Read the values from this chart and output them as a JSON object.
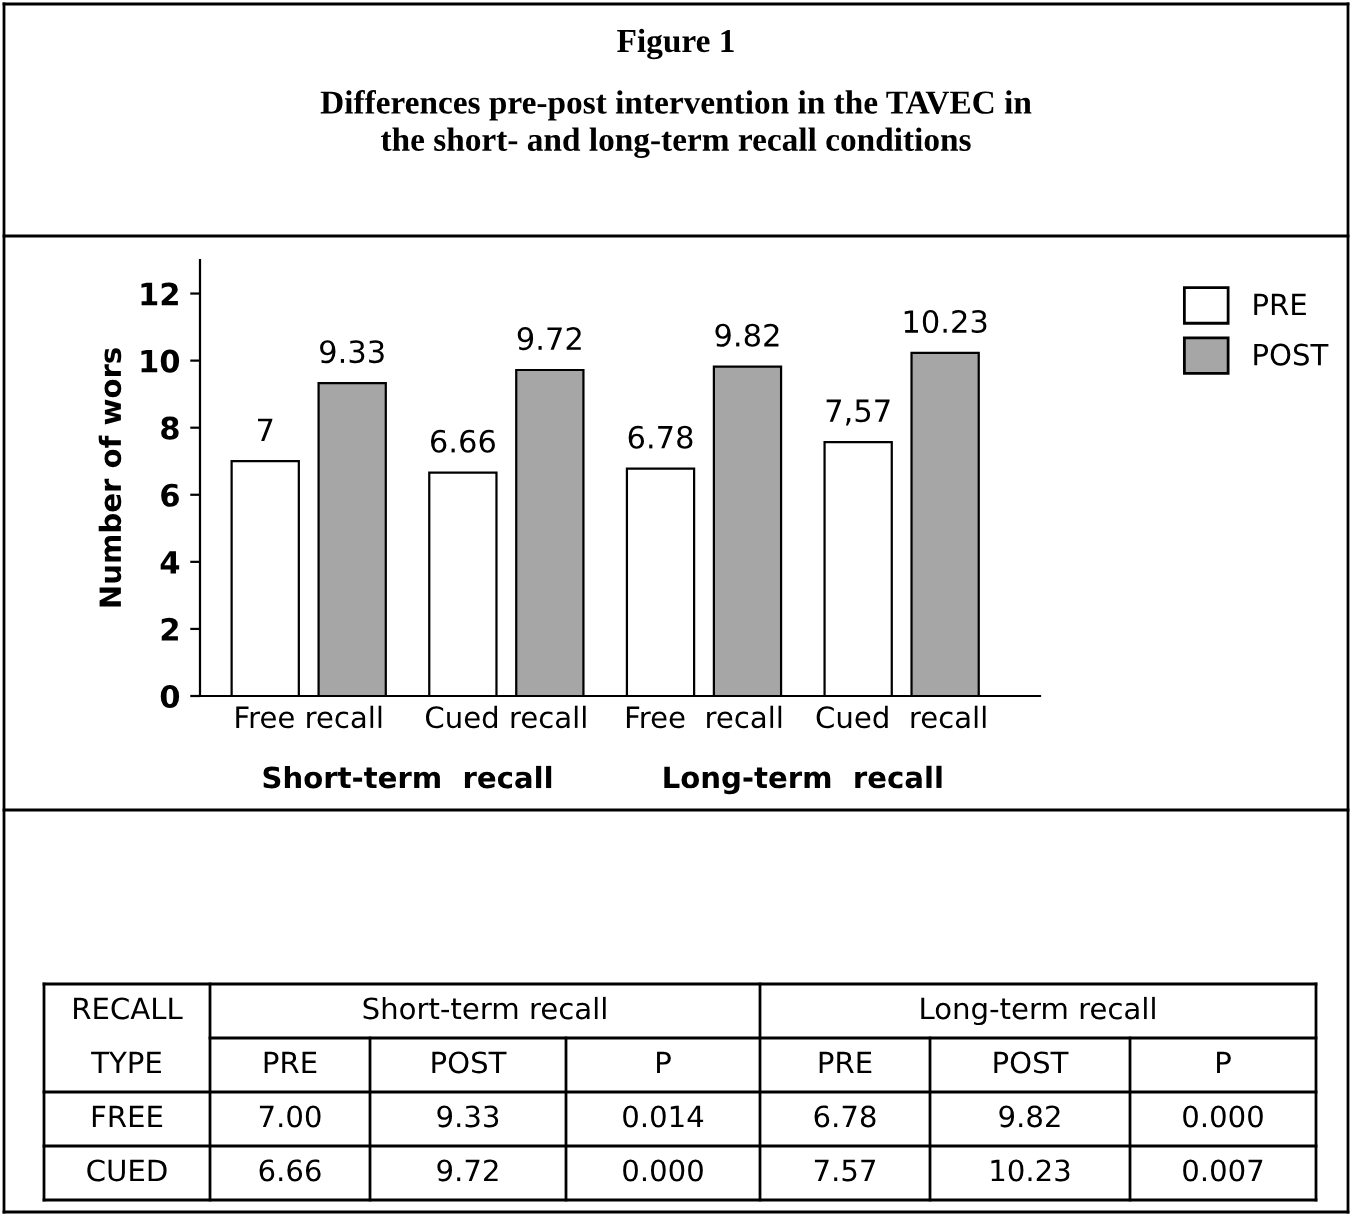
{
  "chart_data": {
    "type": "bar",
    "title": "Figure 1",
    "subtitle": "Differences pre-post intervention in the TAVEC in\nthe short- and long-term recall conditions",
    "ylabel": "Number of wors",
    "categories": [
      "Free recall",
      "Cued recall",
      "Free  recall",
      "Cued  recall"
    ],
    "series": [
      {
        "name": "PRE",
        "color": "#ffffff",
        "values": [
          7,
          6.66,
          6.78,
          7.57
        ],
        "value_labels": [
          "7",
          "6.66",
          "6.78",
          "7,57"
        ]
      },
      {
        "name": "POST",
        "color": "#a6a6a6",
        "values": [
          9.33,
          9.72,
          9.82,
          10.23
        ],
        "value_labels": [
          "9.33",
          "9.72",
          "9.82",
          "10.23"
        ]
      }
    ],
    "ylim": [
      0,
      13
    ],
    "yticks": [
      0,
      2,
      4,
      6,
      8,
      10,
      12
    ],
    "grid": false,
    "legend": "top right",
    "annotations": [
      "Short-term  recall",
      "Long-term  recall",
      "RECALL",
      "Short-term recall",
      "Long-term recall",
      "TYPE",
      "PRE",
      "POST",
      "P",
      "PRE",
      "POST",
      "P",
      "FREE",
      "7.00",
      "9.33",
      "0.014",
      "6.78",
      "9.82",
      "0.000",
      "CUED",
      "6.66",
      "9.72",
      "0.000",
      "7.57",
      "10.23",
      "0.007"
    ]
  }
}
